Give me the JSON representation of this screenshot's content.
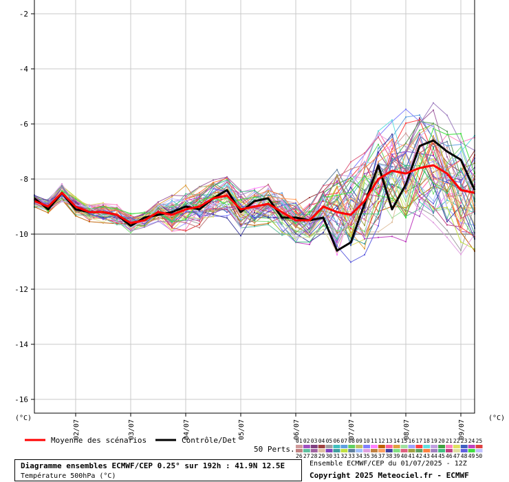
{
  "chart_data": {
    "type": "line",
    "ylim": [
      -16.5,
      -1.5
    ],
    "yticks": [
      -2,
      -4,
      -6,
      -8,
      -10,
      -12,
      -14,
      -16
    ],
    "highlight_y": -10,
    "x_date_labels": [
      "02/07",
      "03/07",
      "04/07",
      "05/07",
      "06/07",
      "07/07",
      "08/07",
      "09/07"
    ],
    "x_date_steps": [
      6,
      14,
      22,
      30,
      38,
      46,
      54,
      62
    ],
    "x_step_hours": 3,
    "x_steps_total": 64,
    "y_unit_left": "(°C)",
    "y_unit_right": "(°C)",
    "grid": true,
    "mean": {
      "name": "Moyenne des scénarios",
      "color": "#ff0000",
      "values": [
        -8.8,
        -9.0,
        -8.5,
        -9.0,
        -9.2,
        -9.2,
        -9.3,
        -9.6,
        -9.5,
        -9.2,
        -9.3,
        -9.1,
        -9.0,
        -8.7,
        -8.6,
        -9.1,
        -9.0,
        -8.9,
        -9.2,
        -9.5,
        -9.5,
        -9.0,
        -9.2,
        -9.3,
        -8.8,
        -8.0,
        -7.7,
        -7.8,
        -7.6,
        -7.5,
        -7.8,
        -8.4,
        -8.5
      ]
    },
    "control": {
      "name": "Contrôle/Det",
      "color": "#000000",
      "values": [
        -8.7,
        -9.1,
        -8.5,
        -9.1,
        -9.2,
        -9.2,
        -9.3,
        -9.7,
        -9.4,
        -9.3,
        -9.2,
        -9.0,
        -9.1,
        -8.7,
        -8.4,
        -9.2,
        -8.8,
        -8.7,
        -9.4,
        -9.4,
        -9.5,
        -9.4,
        -10.6,
        -10.3,
        -8.9,
        -7.5,
        -9.1,
        -8.2,
        -6.8,
        -6.6,
        -7.0,
        -7.3,
        -8.4
      ]
    },
    "members_count_label": "50 Perts.",
    "member_numbers_top": [
      "01",
      "02",
      "03",
      "04",
      "05",
      "06",
      "07",
      "08",
      "09",
      "10",
      "11",
      "12",
      "13",
      "14",
      "15",
      "16",
      "17",
      "18",
      "19",
      "20",
      "21",
      "22",
      "23",
      "24",
      "25"
    ],
    "member_numbers_bottom": [
      "26",
      "27",
      "28",
      "29",
      "30",
      "31",
      "32",
      "33",
      "34",
      "35",
      "36",
      "37",
      "38",
      "39",
      "40",
      "41",
      "42",
      "43",
      "44",
      "45",
      "46",
      "47",
      "48",
      "49",
      "50"
    ],
    "member_colors": [
      "#d09a9a",
      "#a050c0",
      "#804080",
      "#a04040",
      "#a0a0a0",
      "#40c0c0",
      "#60a0e0",
      "#60d060",
      "#c0c060",
      "#8080ff",
      "#ff80ff",
      "#c06000",
      "#ff60a0",
      "#e0a040",
      "#a0e0a0",
      "#a0a0ff",
      "#ff4040",
      "#60e0e0",
      "#c0a0e0",
      "#40a040",
      "#ff80c0",
      "#e0e060",
      "#4060c0",
      "#c040c0",
      "#e04040",
      "#c08080",
      "#60c0a0",
      "#a060a0",
      "#e0c0a0",
      "#8040c0",
      "#40a0a0",
      "#c0e040",
      "#6080a0",
      "#a0c0ff",
      "#e0a0e0",
      "#c08040",
      "#ffa060",
      "#4040a0",
      "#80e080",
      "#e06080",
      "#a0a040",
      "#60a060",
      "#ff8040",
      "#a080c0",
      "#40c080",
      "#c04080",
      "#e0e0a0",
      "#6060e0",
      "#40e040",
      "#c0c0ff"
    ]
  },
  "legend": {
    "mean_label": "Moyenne des scénarios",
    "control_label": "Contrôle/Det"
  },
  "info": {
    "title": "Diagramme ensembles ECMWF/CEP 0.25° sur 192h : 41.9N 12.5E",
    "subtitle": "Température 500hPa (°C)",
    "ensemble_run": "Ensemble ECMWF/CEP du 01/07/2025 - 12Z",
    "copyright": "Copyright 2025 Meteociel.fr - ECMWF"
  }
}
